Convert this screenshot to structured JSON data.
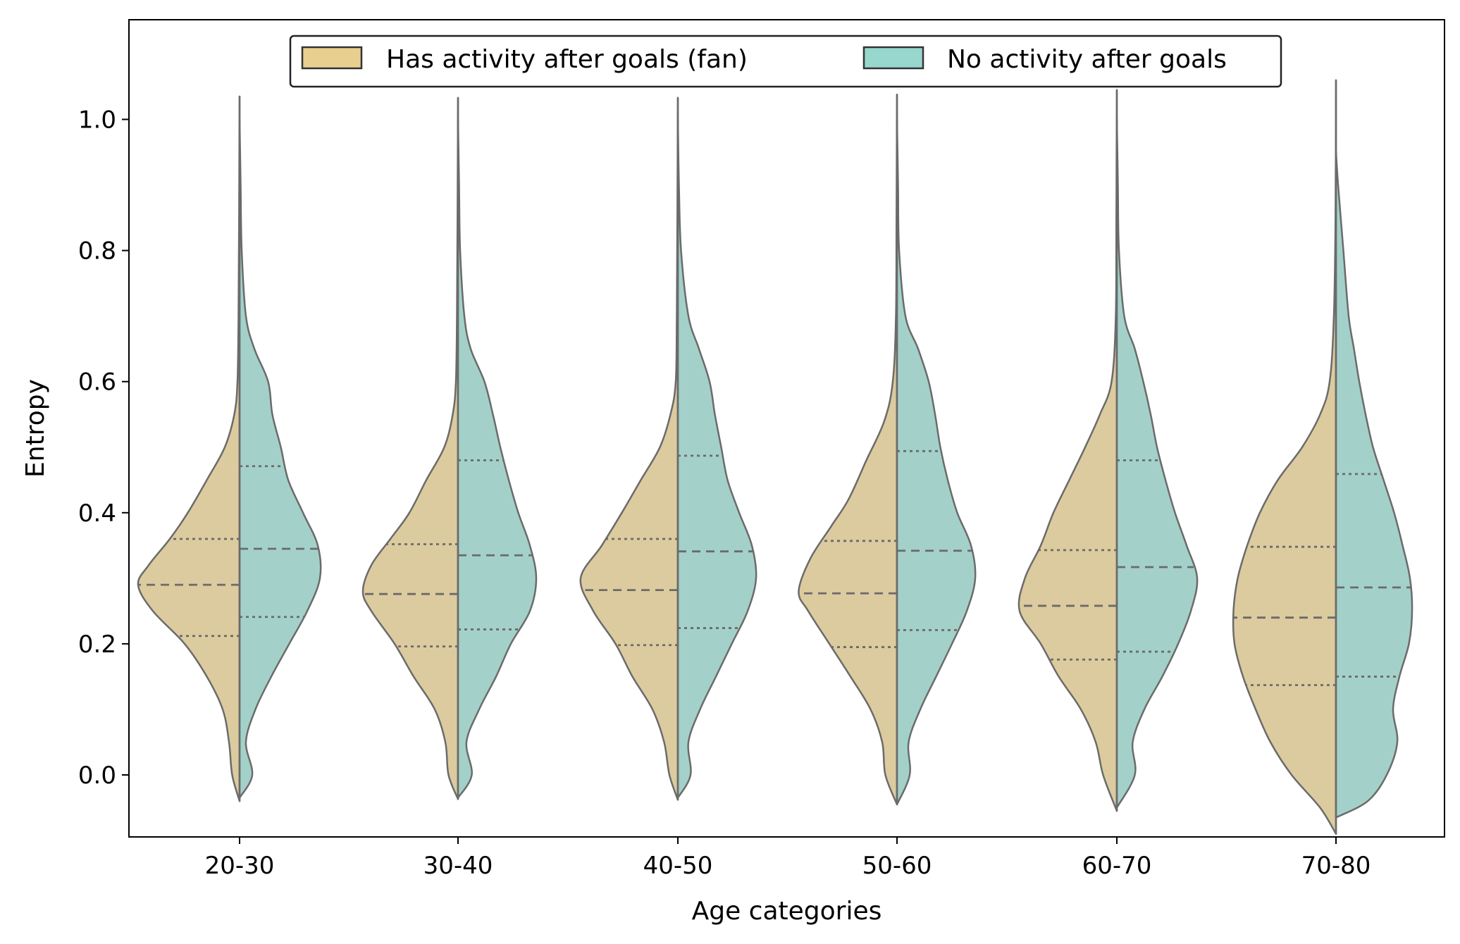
{
  "chart_data": {
    "type": "violin",
    "split": true,
    "xlabel": "Age categories",
    "ylabel": "Entropy",
    "ylim": [
      -0.1,
      1.15
    ],
    "yticks": [
      "0.0",
      "0.2",
      "0.4",
      "0.6",
      "0.8",
      "1.0"
    ],
    "ytick_values": [
      0.0,
      0.2,
      0.4,
      0.6,
      0.8,
      1.0
    ],
    "grid": false,
    "legend_position": "top-center",
    "categories": [
      "20-30",
      "30-40",
      "40-50",
      "50-60",
      "60-70",
      "70-80"
    ],
    "inner": "quartile",
    "series": [
      {
        "name": "Has activity after goals (fan)",
        "legend_color": "#e8cf8f",
        "fill_color": "#dccb9e",
        "side": "left",
        "groups": [
          {
            "q1": 0.212,
            "median": 0.29,
            "q3": 0.36,
            "min": -0.04,
            "max": 1.035,
            "profile": [
              [
                -0.04,
                0.0
              ],
              [
                0.0,
                0.07
              ],
              [
                0.05,
                0.1
              ],
              [
                0.1,
                0.16
              ],
              [
                0.15,
                0.31
              ],
              [
                0.2,
                0.52
              ],
              [
                0.25,
                0.82
              ],
              [
                0.29,
                0.96
              ],
              [
                0.32,
                0.86
              ],
              [
                0.36,
                0.66
              ],
              [
                0.4,
                0.49
              ],
              [
                0.45,
                0.31
              ],
              [
                0.5,
                0.14
              ],
              [
                0.55,
                0.05
              ],
              [
                0.6,
                0.02
              ],
              [
                0.7,
                0.01
              ],
              [
                0.85,
                0.005
              ],
              [
                1.035,
                0.0
              ]
            ]
          },
          {
            "q1": 0.196,
            "median": 0.276,
            "q3": 0.352,
            "min": -0.037,
            "max": 1.033,
            "profile": [
              [
                -0.037,
                0.0
              ],
              [
                0.0,
                0.09
              ],
              [
                0.05,
                0.12
              ],
              [
                0.1,
                0.22
              ],
              [
                0.15,
                0.42
              ],
              [
                0.2,
                0.6
              ],
              [
                0.25,
                0.82
              ],
              [
                0.28,
                0.9
              ],
              [
                0.32,
                0.82
              ],
              [
                0.36,
                0.64
              ],
              [
                0.4,
                0.46
              ],
              [
                0.45,
                0.3
              ],
              [
                0.5,
                0.13
              ],
              [
                0.55,
                0.05
              ],
              [
                0.6,
                0.02
              ],
              [
                0.7,
                0.01
              ],
              [
                0.85,
                0.005
              ],
              [
                1.033,
                0.0
              ]
            ]
          },
          {
            "q1": 0.198,
            "median": 0.282,
            "q3": 0.36,
            "min": -0.038,
            "max": 1.033,
            "profile": [
              [
                -0.038,
                0.0
              ],
              [
                0.0,
                0.08
              ],
              [
                0.05,
                0.13
              ],
              [
                0.1,
                0.24
              ],
              [
                0.15,
                0.43
              ],
              [
                0.2,
                0.59
              ],
              [
                0.25,
                0.8
              ],
              [
                0.3,
                0.92
              ],
              [
                0.35,
                0.72
              ],
              [
                0.4,
                0.53
              ],
              [
                0.45,
                0.35
              ],
              [
                0.5,
                0.17
              ],
              [
                0.55,
                0.07
              ],
              [
                0.6,
                0.02
              ],
              [
                0.7,
                0.01
              ],
              [
                0.85,
                0.005
              ],
              [
                1.033,
                0.0
              ]
            ]
          },
          {
            "q1": 0.195,
            "median": 0.277,
            "q3": 0.357,
            "min": -0.045,
            "max": 1.038,
            "profile": [
              [
                -0.045,
                0.0
              ],
              [
                0.0,
                0.11
              ],
              [
                0.05,
                0.14
              ],
              [
                0.1,
                0.25
              ],
              [
                0.15,
                0.44
              ],
              [
                0.2,
                0.64
              ],
              [
                0.25,
                0.84
              ],
              [
                0.28,
                0.93
              ],
              [
                0.33,
                0.82
              ],
              [
                0.38,
                0.62
              ],
              [
                0.42,
                0.46
              ],
              [
                0.48,
                0.29
              ],
              [
                0.54,
                0.12
              ],
              [
                0.6,
                0.04
              ],
              [
                0.7,
                0.01
              ],
              [
                0.85,
                0.005
              ],
              [
                1.038,
                0.0
              ]
            ]
          },
          {
            "q1": 0.176,
            "median": 0.258,
            "q3": 0.343,
            "min": -0.055,
            "max": 1.045,
            "profile": [
              [
                -0.055,
                0.0
              ],
              [
                0.0,
                0.13
              ],
              [
                0.05,
                0.2
              ],
              [
                0.1,
                0.34
              ],
              [
                0.15,
                0.55
              ],
              [
                0.2,
                0.72
              ],
              [
                0.25,
                0.92
              ],
              [
                0.3,
                0.87
              ],
              [
                0.35,
                0.72
              ],
              [
                0.4,
                0.6
              ],
              [
                0.45,
                0.45
              ],
              [
                0.5,
                0.3
              ],
              [
                0.55,
                0.16
              ],
              [
                0.6,
                0.05
              ],
              [
                0.7,
                0.01
              ],
              [
                0.85,
                0.005
              ],
              [
                1.045,
                0.0
              ]
            ]
          },
          {
            "q1": 0.137,
            "median": 0.24,
            "q3": 0.348,
            "min": -0.09,
            "max": 1.06,
            "profile": [
              [
                -0.09,
                0.0
              ],
              [
                -0.05,
                0.15
              ],
              [
                0.0,
                0.42
              ],
              [
                0.05,
                0.62
              ],
              [
                0.1,
                0.76
              ],
              [
                0.15,
                0.88
              ],
              [
                0.2,
                0.96
              ],
              [
                0.25,
                0.97
              ],
              [
                0.3,
                0.93
              ],
              [
                0.35,
                0.84
              ],
              [
                0.4,
                0.72
              ],
              [
                0.45,
                0.55
              ],
              [
                0.5,
                0.32
              ],
              [
                0.55,
                0.15
              ],
              [
                0.6,
                0.06
              ],
              [
                0.7,
                0.02
              ],
              [
                0.85,
                0.005
              ],
              [
                1.06,
                0.0
              ]
            ]
          }
        ]
      },
      {
        "name": "No activity after goals",
        "legend_color": "#97d7cd",
        "fill_color": "#a3d1c9",
        "side": "right",
        "groups": [
          {
            "q1": 0.241,
            "median": 0.345,
            "q3": 0.471,
            "min": -0.035,
            "max": 1.0,
            "profile": [
              [
                -0.035,
                0.0
              ],
              [
                0.0,
                0.12
              ],
              [
                0.05,
                0.06
              ],
              [
                0.1,
                0.15
              ],
              [
                0.15,
                0.3
              ],
              [
                0.2,
                0.47
              ],
              [
                0.25,
                0.64
              ],
              [
                0.3,
                0.76
              ],
              [
                0.35,
                0.74
              ],
              [
                0.4,
                0.6
              ],
              [
                0.45,
                0.46
              ],
              [
                0.5,
                0.39
              ],
              [
                0.55,
                0.31
              ],
              [
                0.6,
                0.27
              ],
              [
                0.65,
                0.14
              ],
              [
                0.7,
                0.06
              ],
              [
                0.8,
                0.02
              ],
              [
                0.9,
                0.01
              ],
              [
                1.0,
                0.0
              ]
            ]
          },
          {
            "q1": 0.222,
            "median": 0.335,
            "q3": 0.48,
            "min": -0.035,
            "max": 1.0,
            "profile": [
              [
                -0.035,
                0.0
              ],
              [
                0.0,
                0.13
              ],
              [
                0.05,
                0.08
              ],
              [
                0.1,
                0.2
              ],
              [
                0.15,
                0.36
              ],
              [
                0.2,
                0.5
              ],
              [
                0.25,
                0.68
              ],
              [
                0.3,
                0.74
              ],
              [
                0.35,
                0.68
              ],
              [
                0.4,
                0.57
              ],
              [
                0.45,
                0.48
              ],
              [
                0.5,
                0.4
              ],
              [
                0.55,
                0.33
              ],
              [
                0.6,
                0.25
              ],
              [
                0.65,
                0.12
              ],
              [
                0.7,
                0.06
              ],
              [
                0.8,
                0.02
              ],
              [
                0.9,
                0.01
              ],
              [
                1.0,
                0.0
              ]
            ]
          },
          {
            "q1": 0.224,
            "median": 0.341,
            "q3": 0.487,
            "min": -0.035,
            "max": 1.0,
            "profile": [
              [
                -0.035,
                0.0
              ],
              [
                0.0,
                0.12
              ],
              [
                0.05,
                0.1
              ],
              [
                0.1,
                0.21
              ],
              [
                0.15,
                0.36
              ],
              [
                0.2,
                0.51
              ],
              [
                0.25,
                0.66
              ],
              [
                0.3,
                0.74
              ],
              [
                0.35,
                0.7
              ],
              [
                0.4,
                0.58
              ],
              [
                0.45,
                0.47
              ],
              [
                0.5,
                0.41
              ],
              [
                0.55,
                0.35
              ],
              [
                0.6,
                0.3
              ],
              [
                0.65,
                0.2
              ],
              [
                0.7,
                0.1
              ],
              [
                0.8,
                0.03
              ],
              [
                0.9,
                0.01
              ],
              [
                1.0,
                0.0
              ]
            ]
          },
          {
            "q1": 0.221,
            "median": 0.342,
            "q3": 0.494,
            "min": -0.045,
            "max": 1.0,
            "profile": [
              [
                -0.045,
                0.0
              ],
              [
                0.0,
                0.12
              ],
              [
                0.05,
                0.11
              ],
              [
                0.1,
                0.22
              ],
              [
                0.15,
                0.37
              ],
              [
                0.2,
                0.52
              ],
              [
                0.25,
                0.66
              ],
              [
                0.3,
                0.74
              ],
              [
                0.35,
                0.7
              ],
              [
                0.4,
                0.57
              ],
              [
                0.45,
                0.48
              ],
              [
                0.5,
                0.41
              ],
              [
                0.55,
                0.36
              ],
              [
                0.6,
                0.3
              ],
              [
                0.65,
                0.2
              ],
              [
                0.7,
                0.08
              ],
              [
                0.8,
                0.02
              ],
              [
                0.9,
                0.01
              ],
              [
                1.0,
                0.0
              ]
            ]
          },
          {
            "q1": 0.188,
            "median": 0.317,
            "q3": 0.48,
            "min": -0.05,
            "max": 1.0,
            "profile": [
              [
                -0.05,
                0.0
              ],
              [
                0.0,
                0.17
              ],
              [
                0.05,
                0.15
              ],
              [
                0.1,
                0.26
              ],
              [
                0.15,
                0.43
              ],
              [
                0.2,
                0.58
              ],
              [
                0.25,
                0.7
              ],
              [
                0.3,
                0.76
              ],
              [
                0.35,
                0.66
              ],
              [
                0.4,
                0.55
              ],
              [
                0.45,
                0.46
              ],
              [
                0.5,
                0.38
              ],
              [
                0.55,
                0.32
              ],
              [
                0.6,
                0.25
              ],
              [
                0.65,
                0.17
              ],
              [
                0.7,
                0.07
              ],
              [
                0.8,
                0.02
              ],
              [
                0.9,
                0.01
              ],
              [
                1.0,
                0.0
              ]
            ]
          },
          {
            "q1": 0.15,
            "median": 0.286,
            "q3": 0.459,
            "min": -0.065,
            "max": 0.95,
            "profile": [
              [
                -0.065,
                0.0
              ],
              [
                -0.04,
                0.3
              ],
              [
                0.0,
                0.48
              ],
              [
                0.05,
                0.58
              ],
              [
                0.1,
                0.54
              ],
              [
                0.15,
                0.6
              ],
              [
                0.2,
                0.69
              ],
              [
                0.25,
                0.72
              ],
              [
                0.3,
                0.7
              ],
              [
                0.35,
                0.63
              ],
              [
                0.4,
                0.55
              ],
              [
                0.45,
                0.45
              ],
              [
                0.5,
                0.35
              ],
              [
                0.55,
                0.28
              ],
              [
                0.6,
                0.22
              ],
              [
                0.65,
                0.17
              ],
              [
                0.7,
                0.12
              ],
              [
                0.8,
                0.07
              ],
              [
                0.9,
                0.02
              ],
              [
                0.95,
                0.0
              ]
            ]
          }
        ]
      }
    ]
  }
}
